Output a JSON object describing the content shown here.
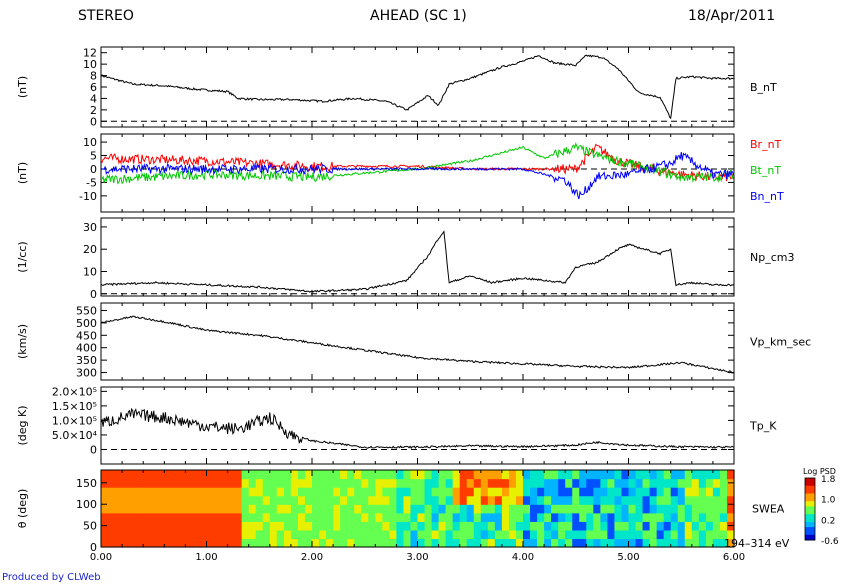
{
  "header": {
    "left": "STEREO",
    "center": "AHEAD (SC 1)",
    "right": "18/Apr/2011"
  },
  "credit": "Produced by CLWeb",
  "chart_data": [
    {
      "type": "line",
      "ylabel": "(nT)",
      "ylim": [
        -1,
        13
      ],
      "yticks": [
        0,
        2,
        4,
        6,
        8,
        10,
        12
      ],
      "tick_labels": [
        "0",
        "2",
        "4",
        "6",
        "8",
        "10",
        "12"
      ],
      "series": [
        {
          "name": "B_nT",
          "color": "#000000",
          "x": [
            0,
            0.3,
            0.6,
            0.9,
            1.2,
            1.3,
            1.5,
            1.8,
            2.1,
            2.4,
            2.7,
            2.9,
            3.1,
            3.2,
            3.3,
            3.5,
            3.8,
            4.0,
            4.15,
            4.3,
            4.5,
            4.6,
            4.75,
            4.9,
            5.1,
            5.3,
            5.4,
            5.45,
            5.6,
            5.8,
            6.0
          ],
          "y": [
            8,
            6.5,
            6.2,
            5.6,
            5.2,
            4,
            3.8,
            3.8,
            3.5,
            4,
            3.5,
            2,
            4.5,
            2.8,
            6.5,
            7.5,
            9.5,
            10.5,
            11.5,
            10.2,
            9.8,
            11.5,
            11.2,
            9.2,
            5,
            4.2,
            0.5,
            7.5,
            7.8,
            7.5,
            7.5
          ]
        }
      ]
    },
    {
      "type": "line",
      "ylabel": "(nT)",
      "ylim": [
        -16,
        13
      ],
      "yticks": [
        -10,
        -5,
        0,
        5,
        10
      ],
      "tick_labels": [
        "-10",
        "-5",
        "0",
        "5",
        "10"
      ],
      "series": [
        {
          "name": "Br_nT",
          "color": "#ff0000",
          "x": [
            0,
            1,
            2,
            3,
            3.5,
            4,
            4.5,
            4.7,
            4.9,
            5.2,
            5.5,
            5.8,
            6.0
          ],
          "y": [
            4,
            3,
            1,
            1,
            0,
            0,
            0,
            8,
            3,
            0,
            -2,
            -3,
            -3
          ]
        },
        {
          "name": "Bt_nT",
          "color": "#00c800",
          "x": [
            0,
            1,
            2,
            3,
            3.5,
            4,
            4.2,
            4.5,
            4.7,
            5.0,
            5.5,
            5.8,
            6.0
          ],
          "y": [
            -4,
            -2,
            -3,
            0,
            3,
            8,
            4,
            8,
            5,
            2,
            -3,
            -3,
            -2
          ]
        },
        {
          "name": "Bn_nT",
          "color": "#0000ff",
          "x": [
            0,
            1,
            2,
            3,
            3.5,
            4,
            4.2,
            4.4,
            4.5,
            4.55,
            4.7,
            5.0,
            5.4,
            5.5,
            5.8,
            6.0
          ],
          "y": [
            0,
            0,
            0,
            0,
            0,
            0,
            -2,
            -4,
            -9,
            -10,
            -3,
            -2,
            2,
            5,
            -2,
            -2
          ]
        }
      ]
    },
    {
      "type": "line",
      "ylabel": "(1/cc)",
      "ylim": [
        -1,
        34
      ],
      "yticks": [
        0,
        10,
        20,
        30
      ],
      "tick_labels": [
        "0",
        "10",
        "20",
        "30"
      ],
      "series": [
        {
          "name": "Np_cm3",
          "color": "#000000",
          "x": [
            0,
            0.5,
            1,
            1.5,
            2,
            2.5,
            2.9,
            3.1,
            3.2,
            3.25,
            3.3,
            3.5,
            3.7,
            4,
            4.4,
            4.5,
            4.7,
            4.9,
            5.0,
            5.3,
            5.4,
            5.45,
            5.6,
            5.8,
            6.0
          ],
          "y": [
            4,
            5,
            4,
            3,
            1,
            2,
            6,
            17,
            25,
            28,
            5,
            8,
            5,
            7,
            5,
            12,
            14,
            20,
            22,
            18,
            20,
            4,
            5,
            4,
            4
          ]
        }
      ]
    },
    {
      "type": "line",
      "ylabel": "(km/s)",
      "ylim": [
        270,
        580
      ],
      "yticks": [
        300,
        350,
        400,
        450,
        500,
        550
      ],
      "tick_labels": [
        "300",
        "350",
        "400",
        "450",
        "500",
        "550"
      ],
      "series": [
        {
          "name": "Vp_km_sec",
          "color": "#000000",
          "x": [
            0,
            0.3,
            0.6,
            1,
            1.5,
            2,
            2.5,
            3,
            3.5,
            4,
            4.5,
            5,
            5.5,
            6.0
          ],
          "y": [
            500,
            525,
            505,
            470,
            450,
            420,
            390,
            360,
            345,
            335,
            325,
            320,
            340,
            300
          ]
        }
      ]
    },
    {
      "type": "line",
      "ylabel": "(deg K)",
      "ylim": [
        -50000,
        215000
      ],
      "yticks": [
        0,
        50000,
        100000,
        150000,
        200000
      ],
      "tick_labels": [
        "0",
        "5.0×10⁴",
        "1.0×10⁵",
        "1.5×10⁵",
        "2.0×10⁵"
      ],
      "series": [
        {
          "name": "Tp_K",
          "color": "#000000",
          "x": [
            0,
            0.3,
            0.6,
            1.0,
            1.3,
            1.6,
            1.8,
            2.0,
            2.5,
            3.0,
            3.5,
            4.0,
            4.5,
            4.7,
            5.0,
            5.4,
            5.8,
            6.0
          ],
          "y": [
            90000,
            120000,
            110000,
            80000,
            70000,
            110000,
            50000,
            30000,
            8000,
            8000,
            12000,
            10000,
            15000,
            25000,
            15000,
            10000,
            8000,
            8000
          ]
        }
      ]
    },
    {
      "type": "heatmap",
      "ylabel": "θ (deg)",
      "ylim": [
        0,
        180
      ],
      "yticks": [
        0,
        50,
        100,
        150
      ],
      "tick_labels": [
        "0",
        "50",
        "100",
        "150"
      ],
      "series_label": "SWEA",
      "energy_label": "194–314 eV",
      "colorbar": {
        "title": "Log PSD",
        "ticks": [
          1.8,
          1.0,
          0.2,
          -0.6
        ],
        "tick_labels": [
          "1.8",
          "1.0",
          "0.2",
          "-0.6"
        ]
      }
    }
  ],
  "xaxis": {
    "ticks": [
      0,
      1,
      2,
      3,
      4,
      5,
      6
    ],
    "tick_labels": [
      "0.00",
      "1.00",
      "2.00",
      "3.00",
      "4.00",
      "5.00",
      "6.00"
    ],
    "xlim": [
      0,
      6
    ]
  }
}
